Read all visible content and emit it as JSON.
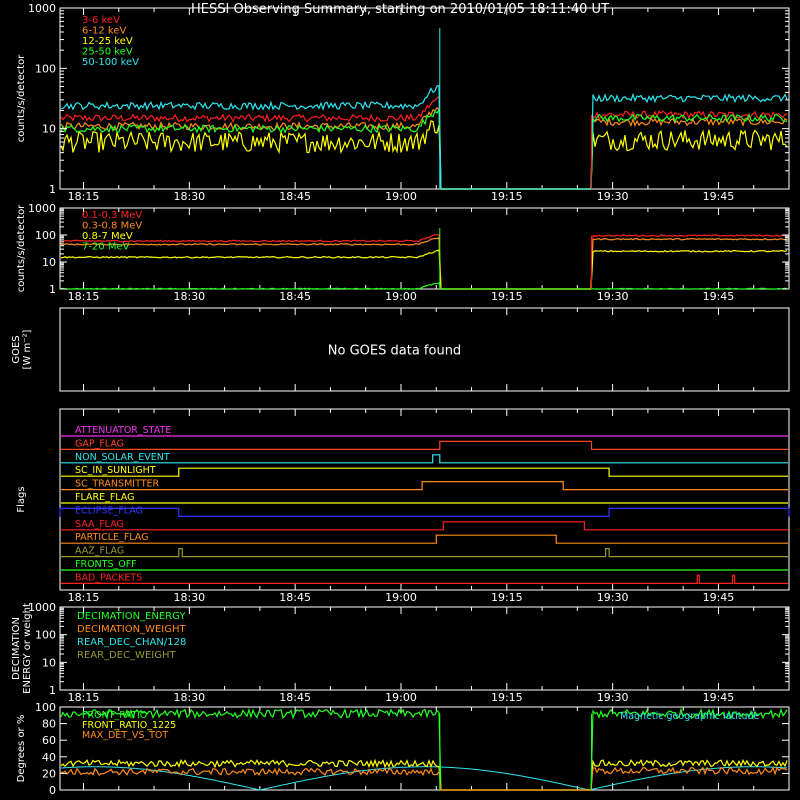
{
  "title": "HESSI Observing Summary, starting on 2010/01/05 18:11:40 UT",
  "time_axis": {
    "start": "18:11:40",
    "end": "19:55:00",
    "ticks": [
      "18:15",
      "18:30",
      "18:45",
      "19:00",
      "19:15",
      "19:30",
      "19:45"
    ]
  },
  "gap": {
    "start": "19:05:30",
    "end": "19:27:00"
  },
  "chart_data": [
    {
      "id": "xray_low",
      "type": "line",
      "ylabel": "counts/s/detector",
      "log": true,
      "ylim": [
        1,
        1000
      ],
      "yticks": [
        "1",
        "10",
        "100",
        "1000"
      ],
      "series": [
        {
          "name": "3-6 keV",
          "color": "#ff2020",
          "before": 15,
          "after": 17
        },
        {
          "name": "6-12 keV",
          "color": "#ff8c1a",
          "before": 11,
          "after": 13
        },
        {
          "name": "12-25 keV",
          "color": "#ffff00",
          "before": 6,
          "after": 6.5
        },
        {
          "name": "25-50 keV",
          "color": "#22ff22",
          "before": 10,
          "after": 15
        },
        {
          "name": "50-100 keV",
          "color": "#2ee6f0",
          "before": 24,
          "after": 32
        }
      ]
    },
    {
      "id": "xray_high",
      "type": "line",
      "ylabel": "counts/s/detector",
      "log": true,
      "ylim": [
        1,
        1000
      ],
      "yticks": [
        "1",
        "10",
        "100",
        "1000"
      ],
      "series": [
        {
          "name": "0.1-0.3 MeV",
          "color": "#ff2020",
          "before": 60,
          "after": 95
        },
        {
          "name": "0.3-0.8 MeV",
          "color": "#ff8c1a",
          "before": 45,
          "after": 70
        },
        {
          "name": "0.8-7 MeV",
          "color": "#ffff00",
          "before": 15,
          "after": 25
        },
        {
          "name": "7-20 MeV",
          "color": "#22ff22",
          "before": 1,
          "after": 1
        }
      ]
    },
    {
      "id": "goes",
      "type": "line",
      "ylabel_lines": [
        "GOES",
        "[W m⁻²]"
      ],
      "message": "No GOES data found"
    },
    {
      "id": "flags",
      "type": "line",
      "ylabel": "Flags",
      "flags": [
        {
          "name": "ATTENUATOR_STATE",
          "color": "#ee33ee",
          "on": []
        },
        {
          "name": "GAP_FLAG",
          "color": "#ff4422",
          "on": [
            [
              "19:05:30",
              "19:27:00"
            ]
          ]
        },
        {
          "name": "NON_SOLAR_EVENT",
          "color": "#2ee6f0",
          "on": [
            [
              "19:04:30",
              "19:05:30"
            ]
          ]
        },
        {
          "name": "SC_IN_SUNLIGHT",
          "color": "#ffff00",
          "on": [
            [
              "18:28:30",
              "19:29:30"
            ]
          ]
        },
        {
          "name": "SC_TRANSMITTER",
          "color": "#ff8c1a",
          "on": [
            [
              "19:03:00",
              "19:23:00"
            ]
          ]
        },
        {
          "name": "FLARE_FLAG",
          "color": "#ffff00",
          "on": []
        },
        {
          "name": "ECLIPSE_FLAG",
          "color": "#3333ff",
          "on": [
            [
              "18:11:40",
              "18:28:30"
            ],
            [
              "19:29:30",
              "19:55:00"
            ]
          ]
        },
        {
          "name": "SAA_FLAG",
          "color": "#ff2020",
          "on": [
            [
              "19:06:00",
              "19:26:00"
            ]
          ]
        },
        {
          "name": "PARTICLE_FLAG",
          "color": "#ff8c1a",
          "on": [
            [
              "19:05:00",
              "19:22:00"
            ]
          ]
        },
        {
          "name": "AAZ_FLAG",
          "color": "#999933",
          "on": [
            [
              "18:28:30",
              "18:29:00"
            ],
            [
              "19:29:00",
              "19:29:30"
            ]
          ]
        },
        {
          "name": "FRONTS_OFF",
          "color": "#22ff22",
          "on": []
        },
        {
          "name": "BAD_PACKETS",
          "color": "#ff2020",
          "on": [
            [
              "19:42:00",
              "19:42:15"
            ],
            [
              "19:47:00",
              "19:47:15"
            ]
          ]
        }
      ]
    },
    {
      "id": "decimation",
      "type": "line",
      "ylabel_lines": [
        "DECIMATION",
        "ENERGY or weight"
      ],
      "log": true,
      "ylim": [
        1,
        1000
      ],
      "yticks": [
        "1",
        "10",
        "100",
        "1000"
      ],
      "series": [
        {
          "name": "DECIMATION_ENERGY",
          "color": "#22ff22"
        },
        {
          "name": "DECIMATION_WEIGHT",
          "color": "#ff8c1a"
        },
        {
          "name": "REAR_DEC_CHAN/128",
          "color": "#2ee6f0"
        },
        {
          "name": "REAR_DEC_WEIGHT",
          "color": "#999933"
        }
      ]
    },
    {
      "id": "pointing",
      "type": "line",
      "ylabel": "Degrees or %",
      "log": false,
      "ylim": [
        0,
        100
      ],
      "yticks": [
        "0",
        "20",
        "40",
        "60",
        "80",
        "100"
      ],
      "annotation": "Magnetic geographic latitude",
      "series": [
        {
          "name": "FRONT_RATIO",
          "color": "#22ff22",
          "before": 92,
          "after": 92
        },
        {
          "name": "FRONT_RATIO_1225",
          "color": "#ffff00",
          "before": 32,
          "after": 32
        },
        {
          "name": "MAX_DET_VS_TOT",
          "color": "#ff8c1a",
          "before": 22,
          "after": 23
        }
      ]
    }
  ]
}
